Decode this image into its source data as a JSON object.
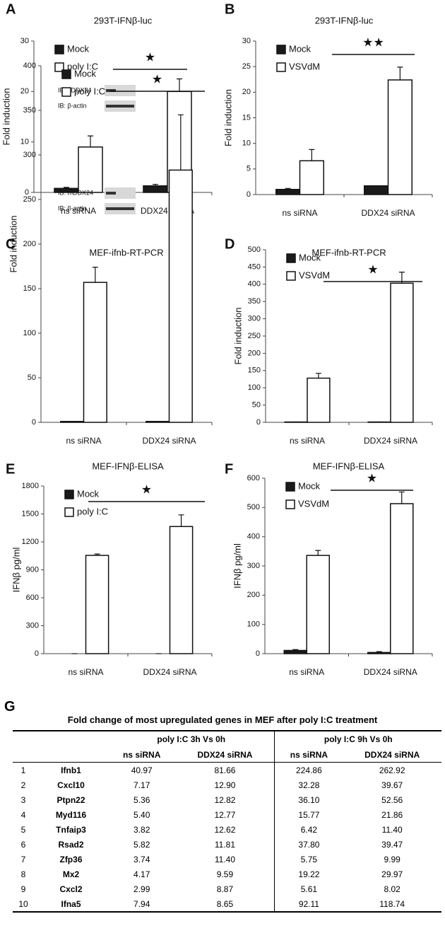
{
  "chart_data": [
    {
      "type": "bar",
      "panel": "A",
      "title": "293T-IFNβ-luc",
      "ylabel": "Fold induction",
      "categories": [
        "ns siRNA",
        "DDX24 siRNA"
      ],
      "series": [
        {
          "name": "Mock",
          "color": "#1a1a1a",
          "values": [
            0.8,
            1.3
          ],
          "errors": [
            0.2,
            0.3
          ]
        },
        {
          "name": "poly I:C",
          "color": "#ffffff",
          "values": [
            9,
            20
          ],
          "errors": [
            2.2,
            2.5
          ]
        }
      ],
      "ylim": [
        0,
        30
      ],
      "yticks": [
        0,
        10,
        20,
        30
      ],
      "annotation": "★",
      "inset_labels": [
        "IB: hDDX24",
        "IB: β-actin"
      ]
    },
    {
      "type": "bar",
      "panel": "B",
      "title": "293T-IFNβ-luc",
      "ylabel": "Fold induction",
      "categories": [
        "ns siRNA",
        "DDX24 siRNA"
      ],
      "series": [
        {
          "name": "Mock",
          "color": "#1a1a1a",
          "values": [
            1.0,
            1.7
          ],
          "errors": [
            0.2,
            0
          ]
        },
        {
          "name": "VSVdM",
          "color": "#ffffff",
          "values": [
            6.6,
            22.4
          ],
          "errors": [
            2.2,
            2.5
          ]
        }
      ],
      "ylim": [
        0,
        30
      ],
      "yticks": [
        0,
        5,
        10,
        15,
        20,
        25,
        30
      ],
      "annotation": "★★"
    },
    {
      "type": "bar",
      "panel": "C",
      "title": "MEF-ifnb-RT-PCR",
      "ylabel": "Fold induction",
      "categories": [
        "ns siRNA",
        "DDX24 siRNA"
      ],
      "series": [
        {
          "name": "Mock",
          "color": "#1a1a1a",
          "values": [
            1,
            1
          ],
          "errors": [
            0,
            0
          ]
        },
        {
          "name": "poly I:C",
          "color": "#ffffff",
          "values": [
            157,
            283
          ],
          "errors": [
            17,
            62
          ]
        }
      ],
      "ylim": [
        0,
        400
      ],
      "yticks": [
        0,
        50,
        100,
        150,
        200,
        250,
        300,
        350,
        400
      ],
      "annotation": "★",
      "inset_labels": [
        "IB: mDDX24",
        "IB: β-actin"
      ]
    },
    {
      "type": "bar",
      "panel": "D",
      "title": "MEF-ifnb-RT-PCR",
      "ylabel": "Fold induction",
      "categories": [
        "ns siRNA",
        "DDX24 siRNA"
      ],
      "series": [
        {
          "name": "Mock",
          "color": "#1a1a1a",
          "values": [
            1,
            1
          ],
          "errors": [
            0,
            0
          ]
        },
        {
          "name": "VSVdM",
          "color": "#ffffff",
          "values": [
            128,
            403
          ],
          "errors": [
            14,
            32
          ]
        }
      ],
      "ylim": [
        0,
        500
      ],
      "yticks": [
        0,
        50,
        100,
        150,
        200,
        250,
        300,
        350,
        400,
        450,
        500
      ],
      "annotation": "★"
    },
    {
      "type": "bar",
      "panel": "E",
      "title": "MEF-IFNβ-ELISA",
      "ylabel": "IFNβ pg/ml",
      "categories": [
        "ns siRNA",
        "DDX24 siRNA"
      ],
      "series": [
        {
          "name": "Mock",
          "color": "#1a1a1a",
          "values": [
            0,
            0
          ],
          "errors": [
            0,
            0
          ]
        },
        {
          "name": "poly I:C",
          "color": "#ffffff",
          "values": [
            1055,
            1365
          ],
          "errors": [
            15,
            125
          ]
        }
      ],
      "ylim": [
        0,
        1800
      ],
      "yticks": [
        0,
        300,
        600,
        900,
        1200,
        1500,
        1800
      ],
      "annotation": "★"
    },
    {
      "type": "bar",
      "panel": "F",
      "title": "MEF-IFNβ-ELISA",
      "ylabel": "IFNβ pg/ml",
      "categories": [
        "ns siRNA",
        "DDX24 siRNA"
      ],
      "series": [
        {
          "name": "Mock",
          "color": "#1a1a1a",
          "values": [
            11,
            4
          ],
          "errors": [
            3,
            3
          ]
        },
        {
          "name": "VSVdM",
          "color": "#ffffff",
          "values": [
            336,
            513
          ],
          "errors": [
            17,
            40
          ]
        }
      ],
      "ylim": [
        0,
        600
      ],
      "yticks": [
        0,
        100,
        200,
        300,
        400,
        500,
        600
      ],
      "annotation": "★"
    }
  ],
  "table": {
    "panel": "G",
    "title": "Fold change of most upregulated genes in MEF after poly I:C treatment",
    "groups": [
      "poly I:C 3h Vs 0h",
      "poly I:C 9h Vs 0h"
    ],
    "columns": [
      "ns siRNA",
      "DDX24 siRNA",
      "ns siRNA",
      "DDX24 siRNA"
    ],
    "rows": [
      [
        "1",
        "Ifnb1",
        "40.97",
        "81.66",
        "224.86",
        "262.92"
      ],
      [
        "2",
        "Cxcl10",
        "7.17",
        "12.90",
        "32.28",
        "39.67"
      ],
      [
        "3",
        "Ptpn22",
        "5.36",
        "12.82",
        "36.10",
        "52.56"
      ],
      [
        "4",
        "Myd116",
        "5.40",
        "12.77",
        "15.77",
        "21.86"
      ],
      [
        "5",
        "Tnfaip3",
        "3.82",
        "12.62",
        "6.42",
        "11.40"
      ],
      [
        "6",
        "Rsad2",
        "5.82",
        "11.81",
        "37.80",
        "39.47"
      ],
      [
        "7",
        "Zfp36",
        "3.74",
        "11.40",
        "5.75",
        "9.99"
      ],
      [
        "8",
        "Mx2",
        "4.17",
        "9.59",
        "19.22",
        "29.97"
      ],
      [
        "9",
        "Cxcl2",
        "2.99",
        "8.87",
        "5.61",
        "8.02"
      ],
      [
        "10",
        "Ifna5",
        "7.94",
        "8.65",
        "92.11",
        "118.74"
      ]
    ]
  }
}
